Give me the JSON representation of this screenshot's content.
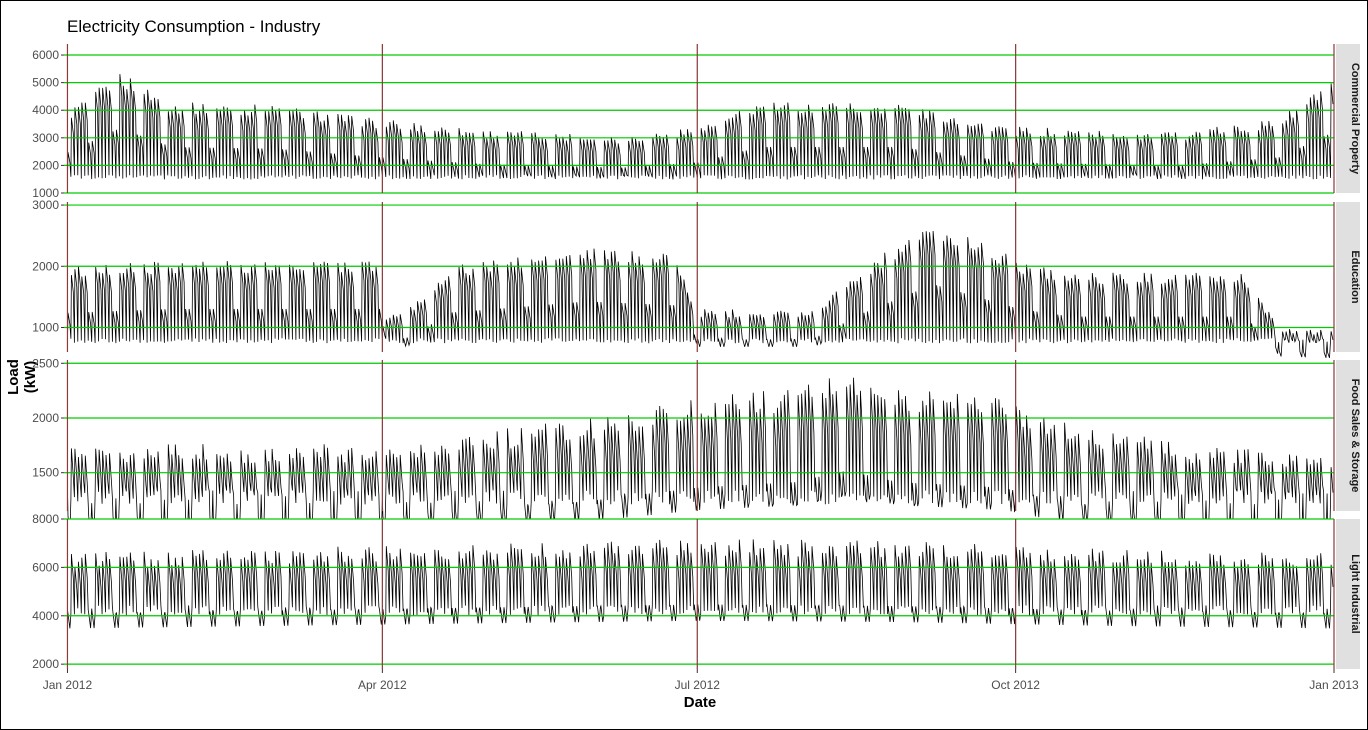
{
  "chart_data": {
    "type": "line",
    "title": "Electricity Consumption - Industry",
    "xlabel": "Date",
    "ylabel": "Load (kW)",
    "x_range": [
      "2011-12-31",
      "2013-01-01"
    ],
    "x_ticks": [
      {
        "label": "Jan 2012",
        "date": "2012-01-01"
      },
      {
        "label": "Apr 2012",
        "date": "2012-04-01"
      },
      {
        "label": "Jul 2012",
        "date": "2012-07-01"
      },
      {
        "label": "Oct 2012",
        "date": "2012-10-01"
      },
      {
        "label": "Jan 2013",
        "date": "2013-01-01"
      }
    ],
    "grid": true,
    "colors": {
      "line": "#000000",
      "hline": "#00cc00",
      "vline": "#8b3a3a",
      "panel_bg": "#ffffff",
      "grid": "#e6e6e6",
      "strip_bg": "#e0e0e0"
    },
    "panels": [
      {
        "name": "Commercial Property",
        "ylim": [
          1000,
          6400
        ],
        "yticks": [
          1000,
          2000,
          3000,
          4000,
          5000,
          6000
        ],
        "hlines": [
          1000,
          2000,
          3000,
          4000,
          5000,
          6000
        ],
        "base": 1600,
        "peak_profile": [
          [
            0,
            4000
          ],
          [
            15,
            5400
          ],
          [
            30,
            4300
          ],
          [
            60,
            4200
          ],
          [
            90,
            3700
          ],
          [
            120,
            3300
          ],
          [
            160,
            3100
          ],
          [
            182,
            3400
          ],
          [
            200,
            4300
          ],
          [
            240,
            4300
          ],
          [
            274,
            3400
          ],
          [
            320,
            3200
          ],
          [
            350,
            3700
          ],
          [
            366,
            5200
          ]
        ]
      },
      {
        "name": "Education",
        "ylim": [
          600,
          3050
        ],
        "yticks": [
          1000,
          2000,
          3000
        ],
        "hlines": [
          1000,
          2000,
          3000
        ],
        "base": 800,
        "peak_profile": [
          [
            0,
            2000
          ],
          [
            30,
            2100
          ],
          [
            60,
            2100
          ],
          [
            90,
            2100
          ],
          [
            92,
            1200
          ],
          [
            100,
            1400
          ],
          [
            110,
            2000
          ],
          [
            150,
            2300
          ],
          [
            175,
            2200
          ],
          [
            182,
            1300
          ],
          [
            215,
            1300
          ],
          [
            230,
            2000
          ],
          [
            250,
            2750
          ],
          [
            275,
            2100
          ],
          [
            290,
            1900
          ],
          [
            340,
            1900
          ],
          [
            350,
            1000
          ],
          [
            366,
            950
          ]
        ]
      },
      {
        "name": "Food Sales & Storage",
        "ylim": [
          1150,
          2530
        ],
        "yticks": [
          1500,
          2000,
          2500
        ],
        "hlines": [
          1500,
          2000,
          2500
        ],
        "base": 1300,
        "peak_profile": [
          [
            0,
            1780
          ],
          [
            60,
            1760
          ],
          [
            90,
            1780
          ],
          [
            120,
            1880
          ],
          [
            150,
            2000
          ],
          [
            182,
            2200
          ],
          [
            210,
            2280
          ],
          [
            225,
            2450
          ],
          [
            240,
            2280
          ],
          [
            270,
            2200
          ],
          [
            290,
            1950
          ],
          [
            320,
            1780
          ],
          [
            366,
            1650
          ]
        ]
      },
      {
        "name": "Light Industrial",
        "ylim": [
          1800,
          8000
        ],
        "yticks": [
          2000,
          4000,
          6000,
          8000
        ],
        "hlines": [
          2000,
          4000,
          6000,
          8000
        ],
        "base": 4300,
        "peak_profile": [
          [
            0,
            6600
          ],
          [
            60,
            6800
          ],
          [
            120,
            7000
          ],
          [
            182,
            7200
          ],
          [
            240,
            7100
          ],
          [
            300,
            6800
          ],
          [
            366,
            6600
          ]
        ]
      }
    ]
  }
}
